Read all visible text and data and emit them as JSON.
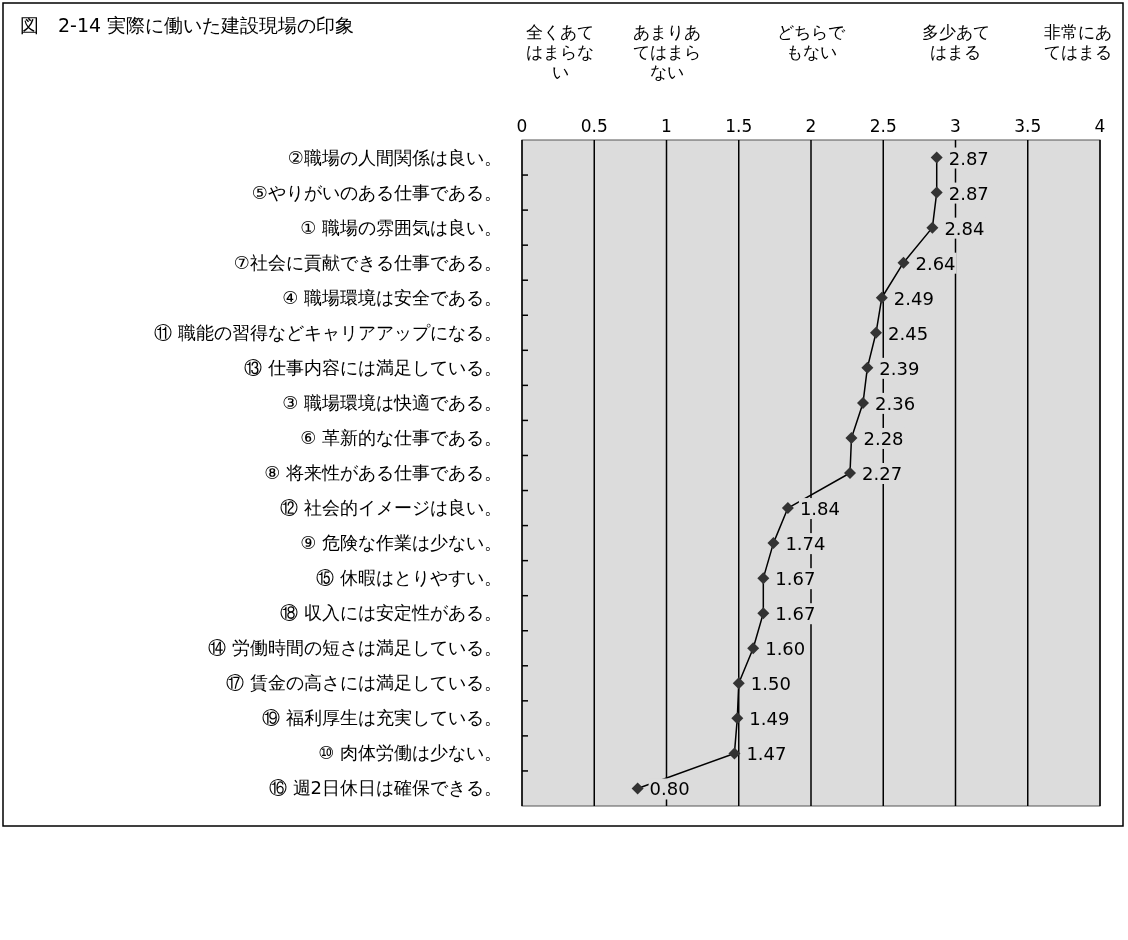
{
  "chart_data": {
    "type": "line",
    "orientation": "horizontal",
    "title": "図　2-14 実際に働いた建設現場の印象",
    "categories": [
      "②職場の人間関係は良い。",
      "⑤やりがいのある仕事である。",
      "① 職場の雰囲気は良い。",
      "⑦社会に貢献できる仕事である。",
      "④ 職場環境は安全である。",
      "⑪ 職能の習得などキャリアアップになる。",
      "⑬ 仕事内容には満足している。",
      "③ 職場環境は快適である。",
      "⑥ 革新的な仕事である。",
      "⑧ 将来性がある仕事である。",
      "⑫ 社会的イメージは良い。",
      "⑨ 危険な作業は少ない。",
      "⑮ 休暇はとりやすい。",
      "⑱ 収入には安定性がある。",
      "⑭ 労働時間の短さは満足している。",
      "⑰ 賃金の高さには満足している。",
      "⑲ 福利厚生は充実している。",
      "⑩ 肉体労働は少ない。",
      "⑯ 週2日休日は確保できる。"
    ],
    "values": [
      2.87,
      2.87,
      2.84,
      2.64,
      2.49,
      2.45,
      2.39,
      2.36,
      2.28,
      2.27,
      1.84,
      1.74,
      1.67,
      1.67,
      1.6,
      1.5,
      1.49,
      1.47,
      0.8
    ],
    "value_labels": [
      "2.87",
      "2.87",
      "2.84",
      "2.64",
      "2.49",
      "2.45",
      "2.39",
      "2.36",
      "2.28",
      "2.27",
      "1.84",
      "1.74",
      "1.67",
      "1.67",
      "1.60",
      "1.50",
      "1.49",
      "1.47",
      "0.80"
    ],
    "color": "#333333",
    "marker": "diamond",
    "line_style": "solid",
    "grid": "x",
    "xlim": [
      0,
      4
    ],
    "xticks": [
      0,
      0.5,
      1,
      1.5,
      2,
      2.5,
      3,
      3.5,
      4
    ],
    "annotations": [
      "全くあてはまらない",
      "あまりあてはまらない",
      "どちらでもない",
      "多少あてはまる",
      "非常にあてはまる"
    ]
  }
}
